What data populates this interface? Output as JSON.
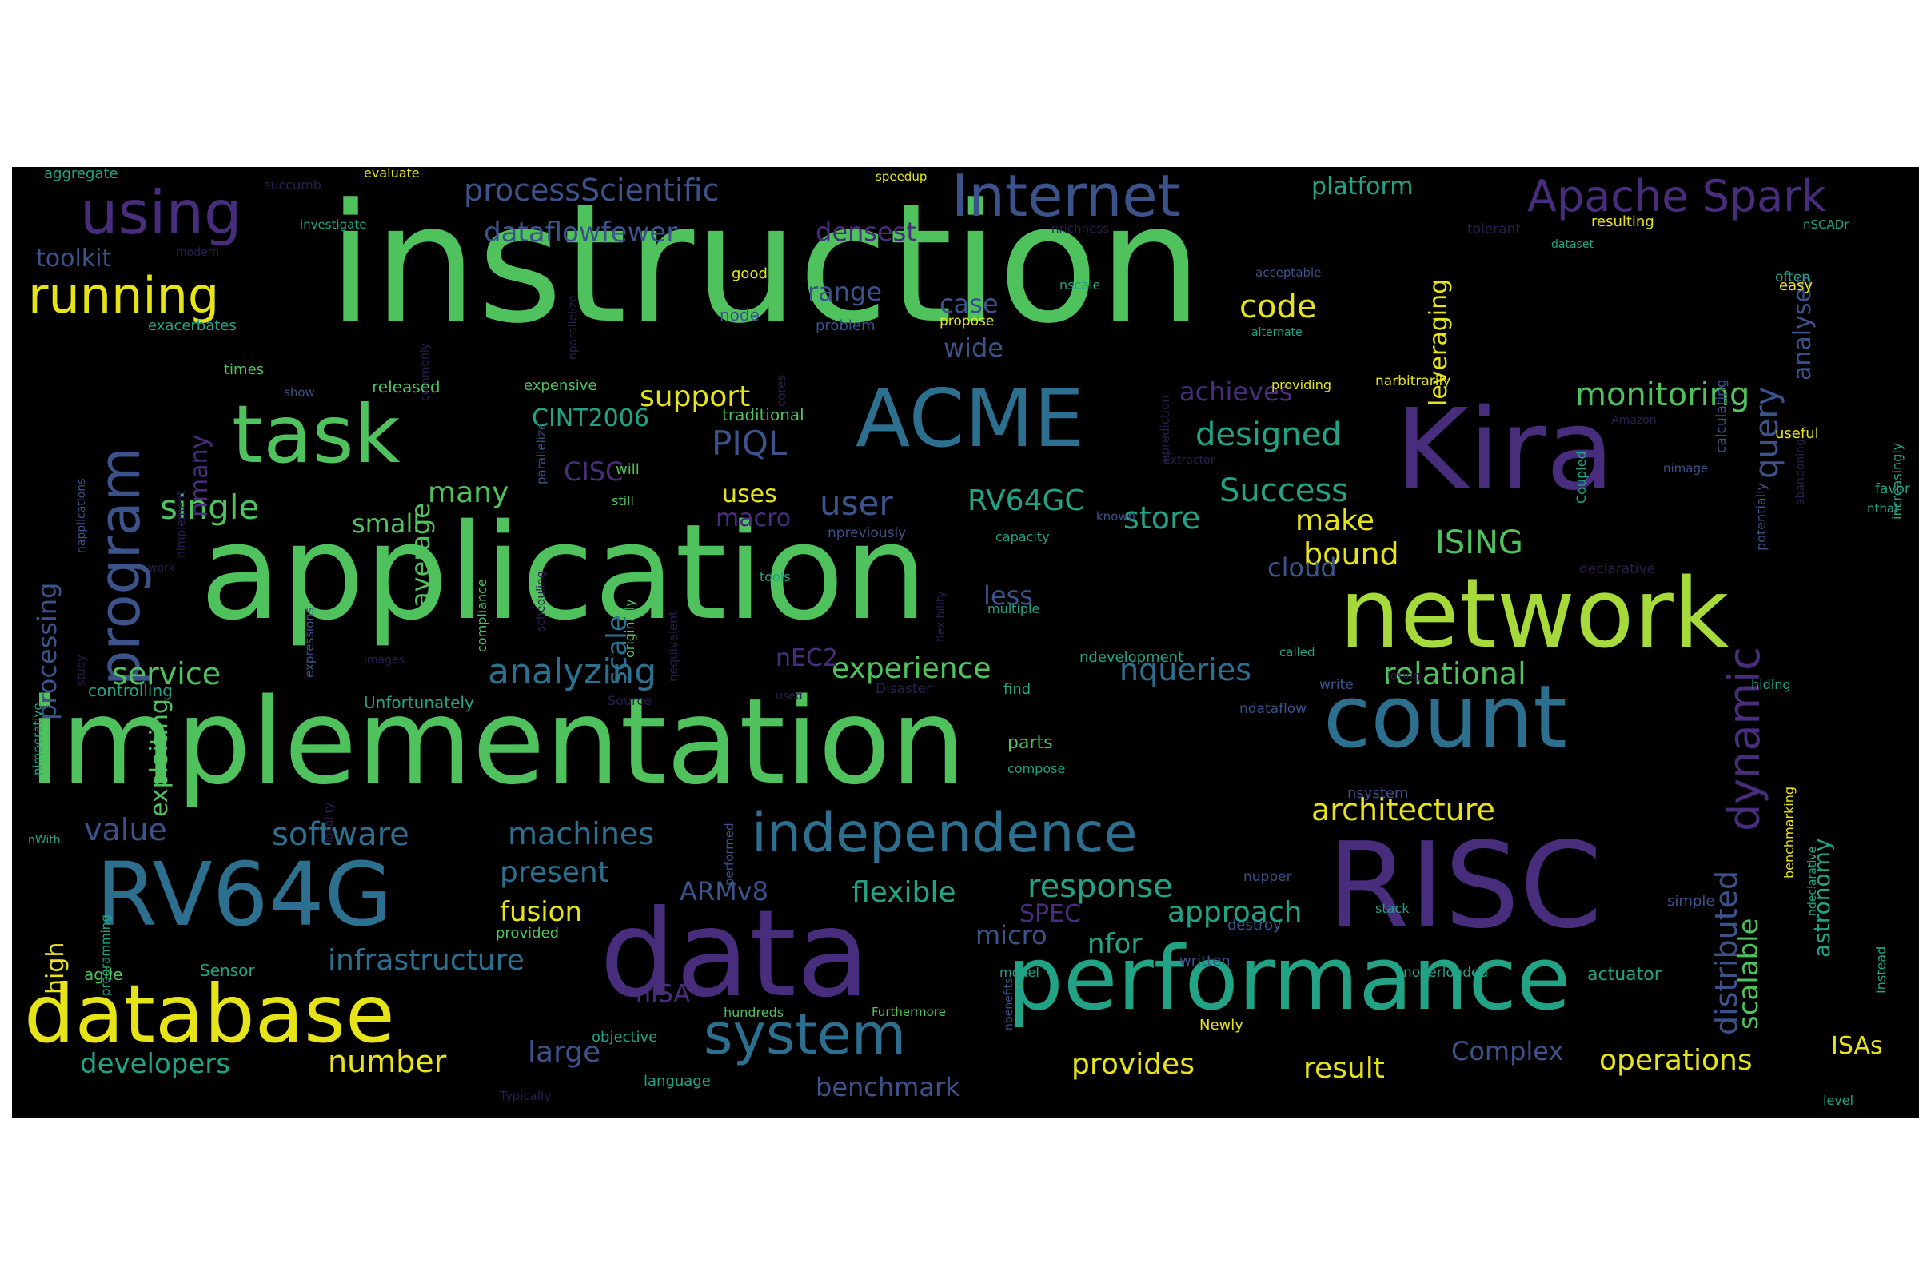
{
  "palette": {
    "background": "#000000",
    "green": "#4fc25e",
    "lime": "#a6d93a",
    "yellow": "#e6e419",
    "teal": "#22a386",
    "blue": "#2c6f8e",
    "slate": "#3b528b",
    "purple": "#472d7b",
    "dark": "#2a1e4e"
  },
  "words": [
    {
      "id": "w1",
      "text": "instruction",
      "color": "green"
    },
    {
      "id": "w2",
      "text": "application",
      "color": "green"
    },
    {
      "id": "w3",
      "text": "implementation",
      "color": "green"
    },
    {
      "id": "w4",
      "text": "data",
      "color": "purple"
    },
    {
      "id": "w5",
      "text": "RISC",
      "color": "purple"
    },
    {
      "id": "w6",
      "text": "Kira",
      "color": "purple"
    },
    {
      "id": "w7",
      "text": "network",
      "color": "lime"
    },
    {
      "id": "w8",
      "text": "performance",
      "color": "teal"
    },
    {
      "id": "w9",
      "text": "count",
      "color": "blue"
    },
    {
      "id": "w10",
      "text": "RV64G",
      "color": "blue"
    },
    {
      "id": "w11",
      "text": "database",
      "color": "yellow"
    },
    {
      "id": "w12",
      "text": "ACME",
      "color": "blue"
    },
    {
      "id": "w13",
      "text": "task",
      "color": "green"
    },
    {
      "id": "w14",
      "text": "independence",
      "color": "blue"
    },
    {
      "id": "w15",
      "text": "system",
      "color": "blue"
    },
    {
      "id": "w16",
      "text": "Internet",
      "color": "slate"
    },
    {
      "id": "w17",
      "text": "Apache Spark",
      "color": "purple"
    },
    {
      "id": "w18",
      "text": "using",
      "color": "purple"
    },
    {
      "id": "w19",
      "text": "running",
      "color": "yellow"
    },
    {
      "id": "w20",
      "text": "processScientific",
      "color": "slate"
    },
    {
      "id": "w21",
      "text": "dataflowfewer",
      "color": "slate"
    },
    {
      "id": "w22",
      "text": "densest",
      "color": "purple"
    },
    {
      "id": "w23",
      "text": "platform",
      "color": "teal"
    },
    {
      "id": "w24",
      "text": "toolkit",
      "color": "slate"
    },
    {
      "id": "w25",
      "text": "aggregate",
      "color": "teal"
    },
    {
      "id": "w26",
      "text": "program",
      "color": "slate"
    },
    {
      "id": "w27",
      "text": "monitoring",
      "color": "green"
    },
    {
      "id": "w28",
      "text": "designed",
      "color": "teal"
    },
    {
      "id": "w29",
      "text": "support",
      "color": "yellow"
    },
    {
      "id": "w30",
      "text": "code",
      "color": "yellow"
    },
    {
      "id": "w31",
      "text": "range",
      "color": "slate"
    },
    {
      "id": "w32",
      "text": "case",
      "color": "slate"
    },
    {
      "id": "w33",
      "text": "wide",
      "color": "slate"
    },
    {
      "id": "w34",
      "text": "achieves",
      "color": "purple"
    },
    {
      "id": "w35",
      "text": "CINT2006",
      "color": "teal"
    },
    {
      "id": "w36",
      "text": "PIQL",
      "color": "slate"
    },
    {
      "id": "w37",
      "text": "single",
      "color": "green"
    },
    {
      "id": "w38",
      "text": "many",
      "color": "green"
    },
    {
      "id": "w39",
      "text": "small",
      "color": "green"
    },
    {
      "id": "w40",
      "text": "user",
      "color": "slate"
    },
    {
      "id": "w41",
      "text": "RV64GC",
      "color": "teal"
    },
    {
      "id": "w42",
      "text": "store",
      "color": "teal"
    },
    {
      "id": "w43",
      "text": "Success",
      "color": "teal"
    },
    {
      "id": "w44",
      "text": "make",
      "color": "yellow"
    },
    {
      "id": "w45",
      "text": "bound",
      "color": "yellow"
    },
    {
      "id": "w46",
      "text": "ISING",
      "color": "green"
    },
    {
      "id": "w47",
      "text": "cloud",
      "color": "slate"
    },
    {
      "id": "w48",
      "text": "uses",
      "color": "yellow"
    },
    {
      "id": "w49",
      "text": "macro",
      "color": "purple"
    },
    {
      "id": "w50",
      "text": "CISC",
      "color": "purple"
    },
    {
      "id": "w51",
      "text": "less",
      "color": "slate"
    },
    {
      "id": "w52",
      "text": "service",
      "color": "green"
    },
    {
      "id": "w53",
      "text": "analyzing",
      "color": "blue"
    },
    {
      "id": "w54",
      "text": "experience",
      "color": "green"
    },
    {
      "id": "w55",
      "text": "nqueries",
      "color": "blue"
    },
    {
      "id": "w56",
      "text": "relational",
      "color": "green"
    },
    {
      "id": "w57",
      "text": "nEC2",
      "color": "purple"
    },
    {
      "id": "w58",
      "text": "architecture",
      "color": "yellow"
    },
    {
      "id": "w59",
      "text": "value",
      "color": "slate"
    },
    {
      "id": "w60",
      "text": "software",
      "color": "blue"
    },
    {
      "id": "w61",
      "text": "machines",
      "color": "blue"
    },
    {
      "id": "w62",
      "text": "present",
      "color": "blue"
    },
    {
      "id": "w63",
      "text": "response",
      "color": "teal"
    },
    {
      "id": "w64",
      "text": "ARMv8",
      "color": "slate"
    },
    {
      "id": "w65",
      "text": "flexible",
      "color": "teal"
    },
    {
      "id": "w66",
      "text": "SPEC",
      "color": "purple"
    },
    {
      "id": "w67",
      "text": "approach",
      "color": "teal"
    },
    {
      "id": "w68",
      "text": "fusion",
      "color": "yellow"
    },
    {
      "id": "w69",
      "text": "micro",
      "color": "slate"
    },
    {
      "id": "w70",
      "text": "nfor",
      "color": "teal"
    },
    {
      "id": "w71",
      "text": "infrastructure",
      "color": "blue"
    },
    {
      "id": "w72",
      "text": "nISA",
      "color": "purple"
    },
    {
      "id": "w73",
      "text": "developers",
      "color": "teal"
    },
    {
      "id": "w74",
      "text": "number",
      "color": "yellow"
    },
    {
      "id": "w75",
      "text": "large",
      "color": "slate"
    },
    {
      "id": "w76",
      "text": "benchmark",
      "color": "slate"
    },
    {
      "id": "w77",
      "text": "provides",
      "color": "yellow"
    },
    {
      "id": "w78",
      "text": "result",
      "color": "yellow"
    },
    {
      "id": "w79",
      "text": "Complex",
      "color": "slate"
    },
    {
      "id": "w80",
      "text": "operations",
      "color": "yellow"
    },
    {
      "id": "w81",
      "text": "ISAs",
      "color": "yellow"
    },
    {
      "id": "w82",
      "text": "high",
      "color": "yellow"
    },
    {
      "id": "w83",
      "text": "processing",
      "color": "slate"
    },
    {
      "id": "w84",
      "text": "exploiting",
      "color": "green"
    },
    {
      "id": "w85",
      "text": "nmany",
      "color": "purple"
    },
    {
      "id": "w86",
      "text": "average",
      "color": "green"
    },
    {
      "id": "w87",
      "text": "scale",
      "color": "blue"
    },
    {
      "id": "w88",
      "text": "leveraging",
      "color": "yellow"
    },
    {
      "id": "w89",
      "text": "query",
      "color": "slate"
    },
    {
      "id": "w90",
      "text": "analyses",
      "color": "slate"
    },
    {
      "id": "w91",
      "text": "dynamic",
      "color": "purple"
    },
    {
      "id": "w92",
      "text": "distributed",
      "color": "slate"
    },
    {
      "id": "w93",
      "text": "scalable",
      "color": "green"
    },
    {
      "id": "w94",
      "text": "astronomy",
      "color": "teal"
    },
    {
      "id": "w95",
      "text": "actuator",
      "color": "teal"
    },
    {
      "id": "w96",
      "text": "evaluate",
      "color": "yellow"
    },
    {
      "id": "w97",
      "text": "succumb",
      "color": "dark"
    },
    {
      "id": "w98",
      "text": "speedup",
      "color": "yellow"
    },
    {
      "id": "w99",
      "text": "investigate",
      "color": "teal"
    },
    {
      "id": "w100",
      "text": "modern",
      "color": "dark"
    },
    {
      "id": "w101",
      "text": "commonly",
      "color": "dark"
    },
    {
      "id": "w102",
      "text": "nparallelize",
      "color": "dark"
    },
    {
      "id": "w103",
      "text": "good",
      "color": "yellow"
    },
    {
      "id": "w104",
      "text": "node",
      "color": "slate"
    },
    {
      "id": "w105",
      "text": "problem",
      "color": "slate"
    },
    {
      "id": "w106",
      "text": "propose",
      "color": "yellow"
    },
    {
      "id": "w107",
      "text": "nrichness",
      "color": "dark"
    },
    {
      "id": "w108",
      "text": "nscale",
      "color": "teal"
    },
    {
      "id": "w109",
      "text": "nprediction",
      "color": "dark"
    },
    {
      "id": "w110",
      "text": "tolerant",
      "color": "dark"
    },
    {
      "id": "w111",
      "text": "acceptable",
      "color": "slate"
    },
    {
      "id": "w112",
      "text": "alternate",
      "color": "teal"
    },
    {
      "id": "w113",
      "text": "resulting",
      "color": "yellow"
    },
    {
      "id": "w114",
      "text": "dataset",
      "color": "teal"
    },
    {
      "id": "w115",
      "text": "often",
      "color": "teal"
    },
    {
      "id": "w116",
      "text": "nSCADr",
      "color": "teal"
    },
    {
      "id": "w117",
      "text": "easy",
      "color": "yellow"
    },
    {
      "id": "w118",
      "text": "calculating",
      "color": "slate"
    },
    {
      "id": "w119",
      "text": "times",
      "color": "green"
    },
    {
      "id": "w120",
      "text": "exacerbates",
      "color": "teal"
    },
    {
      "id": "w121",
      "text": "show",
      "color": "slate"
    },
    {
      "id": "w122",
      "text": "released",
      "color": "green"
    },
    {
      "id": "w123",
      "text": "nimplement",
      "color": "dark"
    },
    {
      "id": "w124",
      "text": "napplications",
      "color": "slate"
    },
    {
      "id": "w125",
      "text": "parallelize",
      "color": "slate"
    },
    {
      "id": "w126",
      "text": "cores",
      "color": "dark"
    },
    {
      "id": "w127",
      "text": "expensive",
      "color": "green"
    },
    {
      "id": "w128",
      "text": "traditional",
      "color": "green"
    },
    {
      "id": "w129",
      "text": "providing",
      "color": "yellow"
    },
    {
      "id": "w130",
      "text": "narbitrarily",
      "color": "yellow"
    },
    {
      "id": "w131",
      "text": "Amazon",
      "color": "dark"
    },
    {
      "id": "w132",
      "text": "useful",
      "color": "yellow"
    },
    {
      "id": "w133",
      "text": "increasingly",
      "color": "teal"
    },
    {
      "id": "w134",
      "text": "Coupled",
      "color": "teal"
    },
    {
      "id": "w135",
      "text": "Extractor",
      "color": "dark"
    },
    {
      "id": "w136",
      "text": "potentially",
      "color": "slate"
    },
    {
      "id": "w137",
      "text": "abandoning",
      "color": "dark"
    },
    {
      "id": "w138",
      "text": "favor",
      "color": "teal"
    },
    {
      "id": "w139",
      "text": "nthat",
      "color": "teal"
    },
    {
      "id": "w140",
      "text": "will",
      "color": "green"
    },
    {
      "id": "w141",
      "text": "still",
      "color": "green"
    },
    {
      "id": "w142",
      "text": "npreviously",
      "color": "slate"
    },
    {
      "id": "w143",
      "text": "capacity",
      "color": "teal"
    },
    {
      "id": "w144",
      "text": "known",
      "color": "slate"
    },
    {
      "id": "w145",
      "text": "nimage",
      "color": "slate"
    },
    {
      "id": "w146",
      "text": "declarative",
      "color": "dark"
    },
    {
      "id": "w147",
      "text": "compliance",
      "color": "green"
    },
    {
      "id": "w148",
      "text": "scheduling",
      "color": "dark"
    },
    {
      "id": "w149",
      "text": "originally",
      "color": "green"
    },
    {
      "id": "w150",
      "text": "nequivalent",
      "color": "dark"
    },
    {
      "id": "w151",
      "text": "tools",
      "color": "teal"
    },
    {
      "id": "w152",
      "text": "flexibility",
      "color": "dark"
    },
    {
      "id": "w153",
      "text": "multiple",
      "color": "teal"
    },
    {
      "id": "w154",
      "text": "work",
      "color": "dark"
    },
    {
      "id": "w155",
      "text": "expressions",
      "color": "slate"
    },
    {
      "id": "w156",
      "text": "nimperative",
      "color": "teal"
    },
    {
      "id": "w157",
      "text": "study",
      "color": "dark"
    },
    {
      "id": "w158",
      "text": "images",
      "color": "dark"
    },
    {
      "id": "w159",
      "text": "Unfortunately",
      "color": "teal"
    },
    {
      "id": "w160",
      "text": "Source",
      "color": "dark"
    },
    {
      "id": "w161",
      "text": "used",
      "color": "dark"
    },
    {
      "id": "w162",
      "text": "Disaster",
      "color": "dark"
    },
    {
      "id": "w163",
      "text": "find",
      "color": "teal"
    },
    {
      "id": "w164",
      "text": "ndevelopment",
      "color": "teal"
    },
    {
      "id": "w165",
      "text": "called",
      "color": "teal"
    },
    {
      "id": "w166",
      "text": "write",
      "color": "slate"
    },
    {
      "id": "w167",
      "text": "losing",
      "color": "dark"
    },
    {
      "id": "w168",
      "text": "ndataflow",
      "color": "slate"
    },
    {
      "id": "w169",
      "text": "hiding",
      "color": "teal"
    },
    {
      "id": "w170",
      "text": "controlling",
      "color": "teal"
    },
    {
      "id": "w171",
      "text": "locality",
      "color": "dark"
    },
    {
      "id": "w172",
      "text": "parts",
      "color": "green"
    },
    {
      "id": "w173",
      "text": "compose",
      "color": "teal"
    },
    {
      "id": "w174",
      "text": "performed",
      "color": "slate"
    },
    {
      "id": "w175",
      "text": "nsystem",
      "color": "slate"
    },
    {
      "id": "w176",
      "text": "benchmarking",
      "color": "yellow"
    },
    {
      "id": "w177",
      "text": "ndeclarative",
      "color": "teal"
    },
    {
      "id": "w178",
      "text": "nWith",
      "color": "teal"
    },
    {
      "id": "w179",
      "text": "programming",
      "color": "teal"
    },
    {
      "id": "w180",
      "text": "agile",
      "color": "green"
    },
    {
      "id": "w181",
      "text": "Sensor",
      "color": "teal"
    },
    {
      "id": "w182",
      "text": "provided",
      "color": "green"
    },
    {
      "id": "w183",
      "text": "nupper",
      "color": "slate"
    },
    {
      "id": "w184",
      "text": "simple",
      "color": "slate"
    },
    {
      "id": "w185",
      "text": "stack",
      "color": "teal"
    },
    {
      "id": "w186",
      "text": "destroy",
      "color": "slate"
    },
    {
      "id": "w187",
      "text": "written",
      "color": "slate"
    },
    {
      "id": "w188",
      "text": "model",
      "color": "teal"
    },
    {
      "id": "w189",
      "text": "nbenefits",
      "color": "slate"
    },
    {
      "id": "w190",
      "text": "noverloaded",
      "color": "teal"
    },
    {
      "id": "w191",
      "text": "Instead",
      "color": "teal"
    },
    {
      "id": "w192",
      "text": "hundreds",
      "color": "green"
    },
    {
      "id": "w193",
      "text": "Furthermore",
      "color": "green"
    },
    {
      "id": "w194",
      "text": "Newly",
      "color": "yellow"
    },
    {
      "id": "w195",
      "text": "objective",
      "color": "teal"
    },
    {
      "id": "w196",
      "text": "language",
      "color": "teal"
    },
    {
      "id": "w197",
      "text": "Typically",
      "color": "dark"
    },
    {
      "id": "w198",
      "text": "level",
      "color": "teal"
    }
  ]
}
